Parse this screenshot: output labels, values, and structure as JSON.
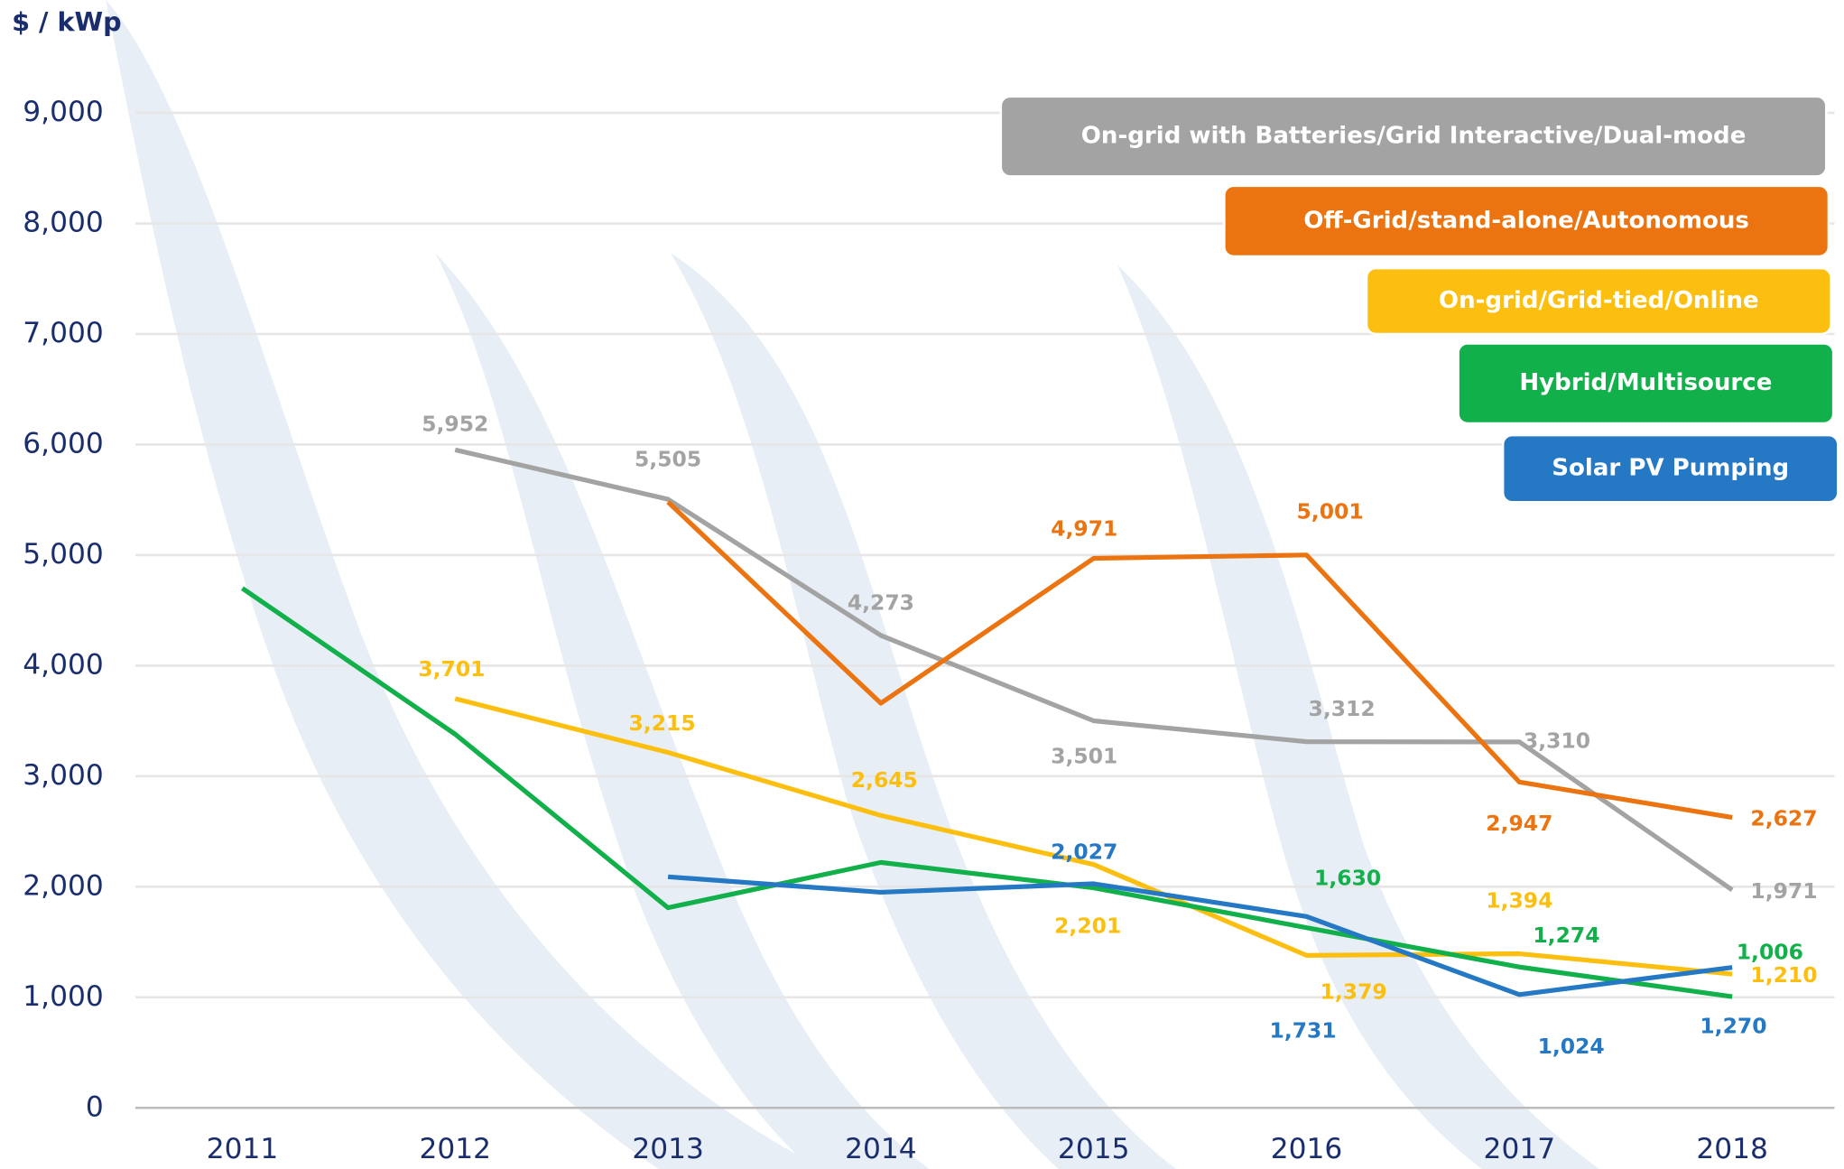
{
  "chart_data": {
    "type": "line",
    "y_label": "$ / kWp",
    "x": [
      2011,
      2012,
      2013,
      2014,
      2015,
      2016,
      2017,
      2018
    ],
    "ylim": [
      0,
      9000
    ],
    "yticks": [
      0,
      {
        "value": 1000,
        "label": "1,000"
      },
      {
        "value": 2000,
        "label": "2,000"
      },
      {
        "value": 3000,
        "label": "3,000"
      },
      {
        "value": 4000,
        "label": "4,000"
      },
      {
        "value": 5000,
        "label": "5,000"
      },
      {
        "value": 6000,
        "label": "6,000"
      },
      {
        "value": 7000,
        "label": "7,000"
      },
      {
        "value": 8000,
        "label": "8,000"
      },
      {
        "value": 9000,
        "label": "9,000"
      }
    ],
    "grid": true,
    "series": [
      {
        "name": "On-grid with Batteries/Grid Interactive/Dual-mode",
        "color": "#a3a3a3",
        "values": [
          null,
          5952,
          5505,
          4273,
          3501,
          3312,
          3310,
          1971
        ],
        "value_labels": [
          null,
          "5,952",
          "5,505",
          "4,273",
          "3,501",
          "3,312",
          "3,310",
          "1,971"
        ]
      },
      {
        "name": "Off-Grid/stand-alone/Autonomous",
        "color": "#ec7410",
        "values": [
          null,
          null,
          5480,
          3660,
          4971,
          5001,
          2947,
          2627
        ],
        "value_labels": [
          null,
          null,
          null,
          null,
          "4,971",
          "5,001",
          "2,947",
          "2,627"
        ]
      },
      {
        "name": "On-grid/Grid-tied/Online",
        "color": "#fcbf10",
        "values": [
          null,
          3701,
          3215,
          2645,
          2201,
          1379,
          1394,
          1210
        ],
        "value_labels": [
          null,
          "3,701",
          "3,215",
          "2,645",
          "2,201",
          "1,379",
          "1,394",
          "1,210"
        ]
      },
      {
        "name": "Hybrid/Multisource",
        "color": "#12b04a",
        "values": [
          4700,
          3380,
          1810,
          2220,
          1990,
          1630,
          1274,
          1006
        ],
        "value_labels": [
          null,
          null,
          null,
          null,
          null,
          "1,630",
          "1,274",
          "1,006"
        ]
      },
      {
        "name": "Solar PV Pumping",
        "color": "#2478c4",
        "values": [
          null,
          null,
          2090,
          1950,
          2027,
          1731,
          1024,
          1270
        ],
        "value_labels": [
          null,
          null,
          null,
          null,
          "2,027",
          "1,731",
          "1,024",
          "1,270"
        ]
      }
    ]
  }
}
